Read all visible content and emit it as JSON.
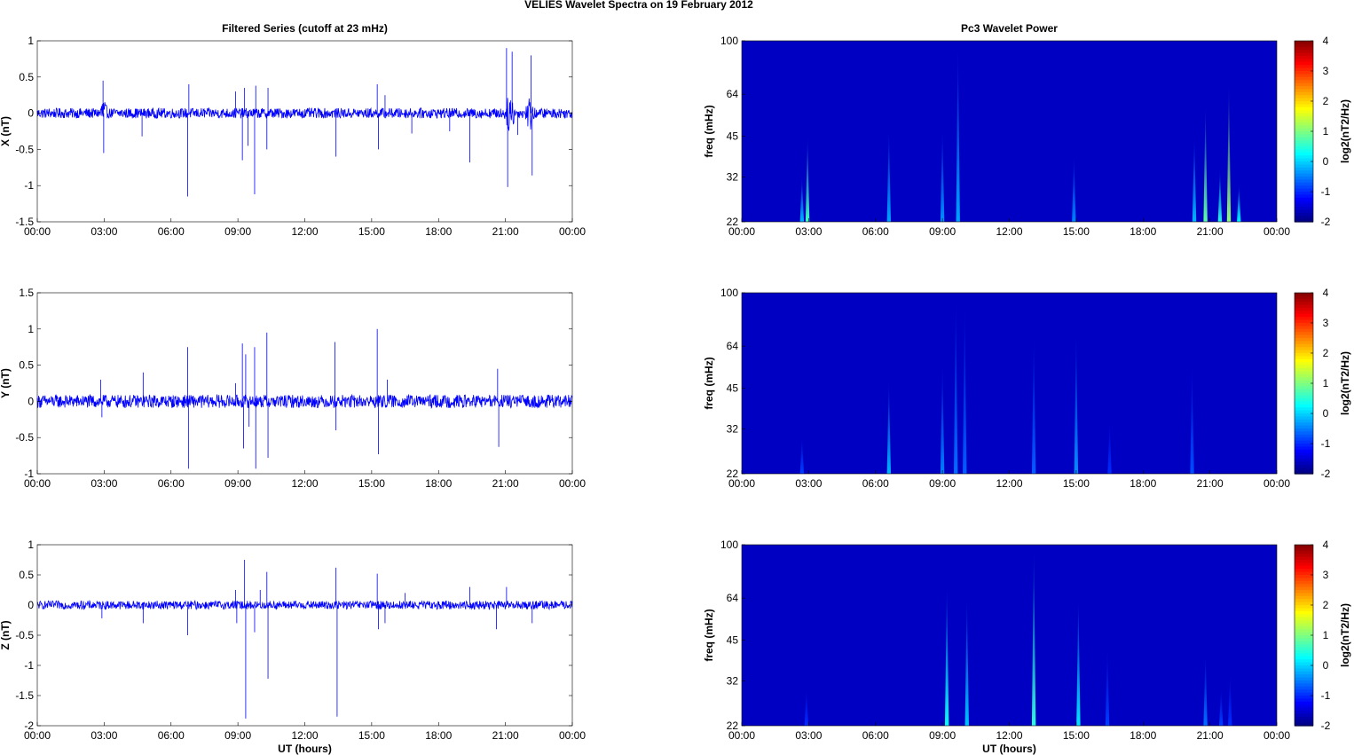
{
  "figure_title": "VELIES Wavelet Spectra on 19 February  2012",
  "chart_data": [
    {
      "type": "line",
      "title": "Filtered Series (cutoff at 23 mHz)",
      "xlabel": "",
      "ylabel": "X (nT)",
      "x_ticks": [
        "00:00",
        "03:00",
        "06:00",
        "09:00",
        "12:00",
        "15:00",
        "18:00",
        "21:00",
        "00:00"
      ],
      "y_ticks": [
        1,
        0.5,
        0,
        -0.5,
        -1,
        -1.5
      ],
      "y_tick_labels": [
        "1",
        "0.5",
        "0",
        "-0.5",
        "-1",
        "-1.5"
      ],
      "ylim": [
        -1.5,
        1
      ],
      "xlim_hours": [
        0,
        24
      ],
      "line_color": "#0000ff",
      "noise_amplitude": 0.07,
      "spikes": [
        {
          "t": 2.95,
          "v": 0.45
        },
        {
          "t": 2.98,
          "v": -0.55
        },
        {
          "t": 4.7,
          "v": -0.32
        },
        {
          "t": 6.75,
          "v": -1.15
        },
        {
          "t": 6.8,
          "v": 0.4
        },
        {
          "t": 8.9,
          "v": 0.3
        },
        {
          "t": 9.2,
          "v": -0.65
        },
        {
          "t": 9.3,
          "v": 0.35
        },
        {
          "t": 9.45,
          "v": -0.45
        },
        {
          "t": 9.75,
          "v": -1.12
        },
        {
          "t": 9.8,
          "v": 0.38
        },
        {
          "t": 10.3,
          "v": -0.5
        },
        {
          "t": 10.35,
          "v": 0.35
        },
        {
          "t": 13.4,
          "v": -0.6
        },
        {
          "t": 15.25,
          "v": 0.4
        },
        {
          "t": 15.3,
          "v": -0.5
        },
        {
          "t": 15.6,
          "v": 0.25
        },
        {
          "t": 16.8,
          "v": -0.28
        },
        {
          "t": 18.5,
          "v": -0.25
        },
        {
          "t": 19.4,
          "v": -0.68
        },
        {
          "t": 21.05,
          "v": 0.9
        },
        {
          "t": 21.1,
          "v": -1.02
        },
        {
          "t": 21.3,
          "v": 0.85
        },
        {
          "t": 21.55,
          "v": -0.3
        },
        {
          "t": 22.15,
          "v": 0.8
        },
        {
          "t": 22.2,
          "v": -0.86
        }
      ],
      "bursts": [
        {
          "t": 2.95,
          "width": 0.25,
          "amp": 0.28
        },
        {
          "t": 21.2,
          "width": 0.35,
          "amp": 0.3
        },
        {
          "t": 22.1,
          "width": 0.3,
          "amp": 0.28
        }
      ]
    },
    {
      "type": "line",
      "title": "",
      "xlabel": "",
      "ylabel": "Y (nT)",
      "x_ticks": [
        "00:00",
        "03:00",
        "06:00",
        "09:00",
        "12:00",
        "15:00",
        "18:00",
        "21:00",
        "00:00"
      ],
      "y_ticks": [
        1.5,
        1,
        0.5,
        0,
        -0.5,
        -1
      ],
      "y_tick_labels": [
        "1.5",
        "1",
        "0.5",
        "0",
        "-0.5",
        "-1"
      ],
      "ylim": [
        -1,
        1.5
      ],
      "xlim_hours": [
        0,
        24
      ],
      "line_color": "#0000ff",
      "noise_amplitude": 0.09,
      "spikes": [
        {
          "t": 2.85,
          "v": 0.3
        },
        {
          "t": 2.9,
          "v": -0.22
        },
        {
          "t": 4.75,
          "v": 0.4
        },
        {
          "t": 6.75,
          "v": 0.75
        },
        {
          "t": 6.78,
          "v": -0.93
        },
        {
          "t": 8.9,
          "v": 0.25
        },
        {
          "t": 9.2,
          "v": 0.8
        },
        {
          "t": 9.25,
          "v": -0.65
        },
        {
          "t": 9.35,
          "v": 0.65
        },
        {
          "t": 9.5,
          "v": -0.35
        },
        {
          "t": 9.75,
          "v": 0.75
        },
        {
          "t": 9.8,
          "v": -0.93
        },
        {
          "t": 10.3,
          "v": 0.95
        },
        {
          "t": 10.35,
          "v": -0.78
        },
        {
          "t": 13.35,
          "v": 0.82
        },
        {
          "t": 13.4,
          "v": -0.4
        },
        {
          "t": 15.25,
          "v": 1.0
        },
        {
          "t": 15.3,
          "v": -0.73
        },
        {
          "t": 15.7,
          "v": 0.3
        },
        {
          "t": 20.65,
          "v": 0.45
        },
        {
          "t": 20.7,
          "v": -0.63
        }
      ],
      "bursts": []
    },
    {
      "type": "line",
      "title": "",
      "xlabel": "UT (hours)",
      "ylabel": "Z (nT)",
      "x_ticks": [
        "00:00",
        "03:00",
        "06:00",
        "09:00",
        "12:00",
        "15:00",
        "18:00",
        "21:00",
        "00:00"
      ],
      "y_ticks": [
        1,
        0.5,
        0,
        -0.5,
        -1,
        -1.5,
        -2
      ],
      "y_tick_labels": [
        "1",
        "0.5",
        "0",
        "-0.5",
        "-1",
        "-1.5",
        "-2"
      ],
      "ylim": [
        -2,
        1
      ],
      "xlim_hours": [
        0,
        24
      ],
      "line_color": "#0000ff",
      "noise_amplitude": 0.07,
      "spikes": [
        {
          "t": 2.9,
          "v": -0.22
        },
        {
          "t": 4.75,
          "v": -0.3
        },
        {
          "t": 6.75,
          "v": -0.5
        },
        {
          "t": 8.9,
          "v": 0.25
        },
        {
          "t": 8.95,
          "v": -0.3
        },
        {
          "t": 9.3,
          "v": 0.75
        },
        {
          "t": 9.35,
          "v": -1.88
        },
        {
          "t": 9.75,
          "v": -0.45
        },
        {
          "t": 10.0,
          "v": 0.25
        },
        {
          "t": 10.3,
          "v": 0.55
        },
        {
          "t": 10.35,
          "v": -1.22
        },
        {
          "t": 13.4,
          "v": 0.62
        },
        {
          "t": 13.45,
          "v": -1.85
        },
        {
          "t": 15.25,
          "v": 0.52
        },
        {
          "t": 15.3,
          "v": -0.4
        },
        {
          "t": 15.6,
          "v": -0.3
        },
        {
          "t": 16.5,
          "v": 0.2
        },
        {
          "t": 19.4,
          "v": 0.3
        },
        {
          "t": 20.6,
          "v": -0.4
        },
        {
          "t": 21.05,
          "v": 0.3
        },
        {
          "t": 22.2,
          "v": -0.3
        }
      ],
      "bursts": []
    },
    {
      "type": "heatmap",
      "title": "Pc3 Wavelet Power",
      "xlabel": "",
      "ylabel": "freq (mHz)",
      "x_ticks": [
        "00:00",
        "03:00",
        "06:00",
        "09:00",
        "12:00",
        "15:00",
        "18:00",
        "21:00",
        "00:00"
      ],
      "y_ticks": [
        100,
        64,
        45,
        32,
        22
      ],
      "y_scale": "log",
      "ylim": [
        22,
        100
      ],
      "xlim_hours": [
        0,
        24
      ],
      "colorbar_label": "log2(nT2/Hz)",
      "colorbar_ticks": [
        4,
        3,
        2,
        1,
        0,
        -1,
        -2
      ],
      "color_range": [
        -2,
        4
      ],
      "background_value": -1.6,
      "events": [
        {
          "t": 2.7,
          "peak": -0.2,
          "fmax": 32
        },
        {
          "t": 2.95,
          "peak": 0.6,
          "fmax": 45
        },
        {
          "t": 6.6,
          "peak": -0.3,
          "fmax": 48
        },
        {
          "t": 9.0,
          "peak": -0.4,
          "fmax": 48
        },
        {
          "t": 9.7,
          "peak": -0.3,
          "fmax": 95
        },
        {
          "t": 14.9,
          "peak": -0.5,
          "fmax": 38
        },
        {
          "t": 20.3,
          "peak": -0.2,
          "fmax": 45
        },
        {
          "t": 20.8,
          "peak": 0.8,
          "fmax": 58
        },
        {
          "t": 21.45,
          "peak": 0.4,
          "fmax": 34
        },
        {
          "t": 21.85,
          "peak": 1.1,
          "fmax": 70
        },
        {
          "t": 22.3,
          "peak": 0.2,
          "fmax": 30
        }
      ]
    },
    {
      "type": "heatmap",
      "title": "",
      "xlabel": "",
      "ylabel": "freq (mHz)",
      "x_ticks": [
        "00:00",
        "03:00",
        "06:00",
        "09:00",
        "12:00",
        "15:00",
        "18:00",
        "21:00",
        "00:00"
      ],
      "y_ticks": [
        100,
        64,
        45,
        32,
        22
      ],
      "y_scale": "log",
      "ylim": [
        22,
        100
      ],
      "xlim_hours": [
        0,
        24
      ],
      "colorbar_label": "log2(nT2/Hz)",
      "colorbar_ticks": [
        4,
        3,
        2,
        1,
        0,
        -1,
        -2
      ],
      "color_range": [
        -2,
        4
      ],
      "background_value": -1.6,
      "events": [
        {
          "t": 2.7,
          "peak": -0.9,
          "fmax": 30
        },
        {
          "t": 6.6,
          "peak": -0.2,
          "fmax": 48
        },
        {
          "t": 9.0,
          "peak": -0.5,
          "fmax": 55
        },
        {
          "t": 9.6,
          "peak": -0.6,
          "fmax": 95
        },
        {
          "t": 10.0,
          "peak": -0.7,
          "fmax": 90
        },
        {
          "t": 13.1,
          "peak": -0.7,
          "fmax": 70
        },
        {
          "t": 15.0,
          "peak": -0.4,
          "fmax": 72
        },
        {
          "t": 16.5,
          "peak": -1.0,
          "fmax": 34
        },
        {
          "t": 20.2,
          "peak": -0.8,
          "fmax": 54
        }
      ]
    },
    {
      "type": "heatmap",
      "title": "",
      "xlabel": "UT (hours)",
      "ylabel": "freq (mHz)",
      "x_ticks": [
        "00:00",
        "03:00",
        "06:00",
        "09:00",
        "12:00",
        "15:00",
        "18:00",
        "21:00",
        "00:00"
      ],
      "y_ticks": [
        100,
        64,
        45,
        32,
        22
      ],
      "y_scale": "log",
      "ylim": [
        22,
        100
      ],
      "xlim_hours": [
        0,
        24
      ],
      "colorbar_label": "log2(nT2/Hz)",
      "colorbar_ticks": [
        4,
        3,
        2,
        1,
        0,
        -1,
        -2
      ],
      "color_range": [
        -2,
        4
      ],
      "background_value": -1.6,
      "events": [
        {
          "t": 2.9,
          "peak": -1.0,
          "fmax": 30
        },
        {
          "t": 9.2,
          "peak": 0.3,
          "fmax": 72
        },
        {
          "t": 10.1,
          "peak": -0.1,
          "fmax": 65
        },
        {
          "t": 13.1,
          "peak": 0.5,
          "fmax": 98
        },
        {
          "t": 15.1,
          "peak": 0.1,
          "fmax": 64
        },
        {
          "t": 16.4,
          "peak": -0.9,
          "fmax": 42
        },
        {
          "t": 20.8,
          "peak": -0.6,
          "fmax": 40
        },
        {
          "t": 21.5,
          "peak": -0.9,
          "fmax": 30
        },
        {
          "t": 21.9,
          "peak": -1.0,
          "fmax": 34
        }
      ]
    }
  ]
}
